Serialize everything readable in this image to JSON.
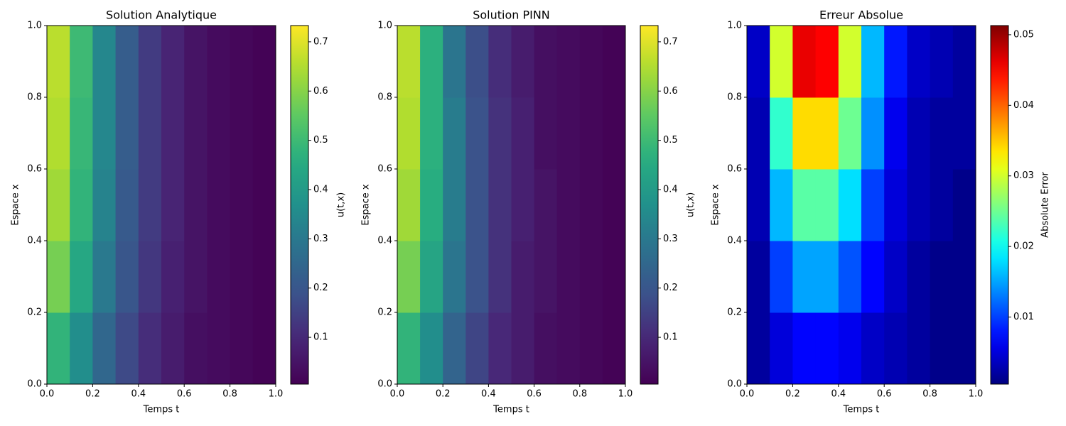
{
  "chart_data": [
    {
      "type": "heatmap",
      "title": "Solution Analytique",
      "x_label": "Temps t",
      "y_label": "Espace x",
      "colorbar_label": "u(t,x)",
      "colormap": "viridis",
      "x": [
        0.05,
        0.15,
        0.25,
        0.35,
        0.45,
        0.55,
        0.65,
        0.75,
        0.85,
        0.95
      ],
      "y": [
        0.1,
        0.3,
        0.5,
        0.7,
        0.9
      ],
      "values": [
        [
          0.48,
          0.36,
          0.25,
          0.17,
          0.11,
          0.07,
          0.04,
          0.03,
          0.02,
          0.01
        ],
        [
          0.58,
          0.44,
          0.3,
          0.2,
          0.13,
          0.08,
          0.05,
          0.03,
          0.02,
          0.01
        ],
        [
          0.63,
          0.48,
          0.33,
          0.21,
          0.14,
          0.09,
          0.05,
          0.03,
          0.02,
          0.01
        ],
        [
          0.65,
          0.49,
          0.34,
          0.22,
          0.14,
          0.09,
          0.05,
          0.03,
          0.02,
          0.01
        ],
        [
          0.66,
          0.5,
          0.34,
          0.22,
          0.14,
          0.09,
          0.05,
          0.03,
          0.02,
          0.01
        ]
      ],
      "xlim": [
        0,
        1
      ],
      "ylim": [
        0,
        1
      ],
      "xticks": [
        {
          "value": 0,
          "label": "0.0"
        },
        0.2,
        0.4,
        0.6,
        0.8,
        {
          "value": 1,
          "label": "1.0"
        }
      ],
      "yticks": [
        {
          "value": 0,
          "label": "0.0"
        },
        0.2,
        0.4,
        0.6,
        0.8,
        {
          "value": 1,
          "label": "1.0"
        }
      ],
      "clim": [
        0.005,
        0.733
      ],
      "cticks": [
        0.1,
        0.2,
        0.3,
        0.4,
        0.5,
        0.6,
        0.7
      ]
    },
    {
      "type": "heatmap",
      "title": "Solution PINN",
      "x_label": "Temps t",
      "y_label": "Espace x",
      "colorbar_label": "u(t,x)",
      "colormap": "viridis",
      "x": [
        0.05,
        0.15,
        0.25,
        0.35,
        0.45,
        0.55,
        0.65,
        0.75,
        0.85,
        0.95
      ],
      "y": [
        0.1,
        0.3,
        0.5,
        0.7,
        0.9
      ],
      "values": [
        [
          0.48,
          0.36,
          0.24,
          0.16,
          0.1,
          0.07,
          0.04,
          0.03,
          0.02,
          0.01
        ],
        [
          0.58,
          0.43,
          0.29,
          0.19,
          0.12,
          0.07,
          0.05,
          0.03,
          0.02,
          0.01
        ],
        [
          0.63,
          0.46,
          0.31,
          0.19,
          0.12,
          0.08,
          0.05,
          0.03,
          0.02,
          0.01
        ],
        [
          0.65,
          0.47,
          0.31,
          0.19,
          0.12,
          0.08,
          0.04,
          0.03,
          0.02,
          0.01
        ],
        [
          0.66,
          0.47,
          0.29,
          0.18,
          0.11,
          0.07,
          0.04,
          0.03,
          0.02,
          0.01
        ]
      ],
      "xlim": [
        0,
        1
      ],
      "ylim": [
        0,
        1
      ],
      "xticks": [
        {
          "value": 0,
          "label": "0.0"
        },
        0.2,
        0.4,
        0.6,
        0.8,
        {
          "value": 1,
          "label": "1.0"
        }
      ],
      "yticks": [
        {
          "value": 0,
          "label": "0.0"
        },
        0.2,
        0.4,
        0.6,
        0.8,
        {
          "value": 1,
          "label": "1.0"
        }
      ],
      "clim": [
        0.005,
        0.733
      ],
      "cticks": [
        0.1,
        0.2,
        0.3,
        0.4,
        0.5,
        0.6,
        0.7
      ]
    },
    {
      "type": "heatmap",
      "title": "Erreur Absolue",
      "x_label": "Temps t",
      "y_label": "Espace x",
      "colorbar_label": "Absolute Error",
      "colormap": "jet",
      "x": [
        0.05,
        0.15,
        0.25,
        0.35,
        0.45,
        0.55,
        0.65,
        0.75,
        0.85,
        0.95
      ],
      "y": [
        0.1,
        0.3,
        0.5,
        0.7,
        0.9
      ],
      "values": [
        [
          0.002,
          0.005,
          0.007,
          0.007,
          0.006,
          0.004,
          0.003,
          0.002,
          0.001,
          0.001
        ],
        [
          0.002,
          0.01,
          0.015,
          0.015,
          0.011,
          0.007,
          0.004,
          0.002,
          0.001,
          0.001
        ],
        [
          0.003,
          0.016,
          0.024,
          0.024,
          0.018,
          0.01,
          0.005,
          0.003,
          0.002,
          0.001
        ],
        [
          0.003,
          0.022,
          0.034,
          0.034,
          0.025,
          0.014,
          0.006,
          0.003,
          0.002,
          0.002
        ],
        [
          0.004,
          0.03,
          0.046,
          0.045,
          0.03,
          0.016,
          0.008,
          0.004,
          0.003,
          0.002
        ]
      ],
      "xlim": [
        0,
        1
      ],
      "ylim": [
        0,
        1
      ],
      "xticks": [
        {
          "value": 0,
          "label": "0.0"
        },
        0.2,
        0.4,
        0.6,
        0.8,
        {
          "value": 1,
          "label": "1.0"
        }
      ],
      "yticks": [
        {
          "value": 0,
          "label": "0.0"
        },
        0.2,
        0.4,
        0.6,
        0.8,
        {
          "value": 1,
          "label": "1.0"
        }
      ],
      "clim": [
        0.0005,
        0.0513
      ],
      "cticks": [
        0.01,
        0.02,
        0.03,
        0.04,
        0.05
      ]
    }
  ]
}
